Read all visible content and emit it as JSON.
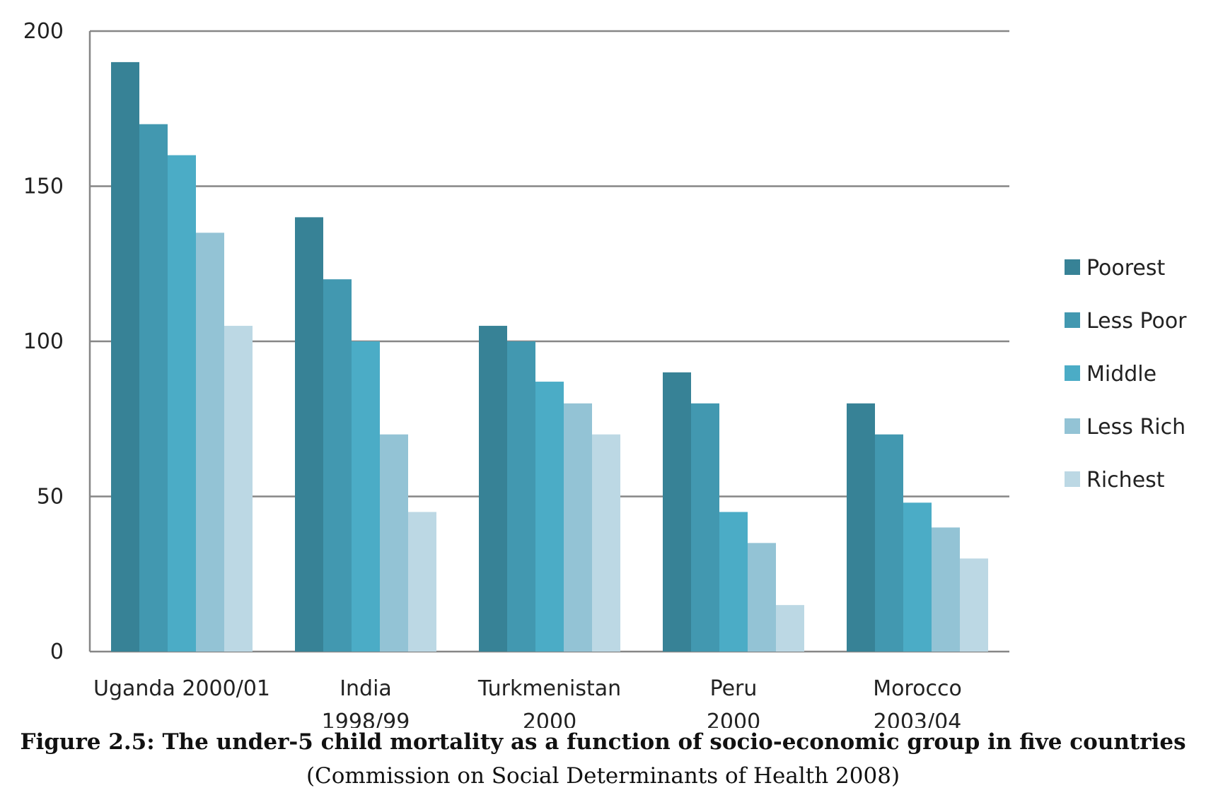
{
  "caption": {
    "title": "Figure 2.5: The under-5 child mortality as a function of socio-economic group in five countries",
    "source": "(Commission on Social Determinants of Health 2008)"
  },
  "chart_data": {
    "type": "bar",
    "categories": [
      [
        "Uganda 2000/01"
      ],
      [
        "India",
        "1998/99"
      ],
      [
        "Turkmenistan",
        "2000"
      ],
      [
        "Peru",
        "2000"
      ],
      [
        "Morocco",
        "2003/04"
      ]
    ],
    "series": [
      {
        "name": "Poorest",
        "color": "#378296",
        "values": [
          190,
          140,
          105,
          90,
          80
        ]
      },
      {
        "name": "Less Poor",
        "color": "#4298b0",
        "values": [
          170,
          120,
          100,
          80,
          70
        ]
      },
      {
        "name": "Middle",
        "color": "#4bacc6",
        "values": [
          160,
          100,
          87,
          45,
          48
        ]
      },
      {
        "name": "Less Rich",
        "color": "#93c3d5",
        "values": [
          135,
          70,
          80,
          35,
          40
        ]
      },
      {
        "name": "Richest",
        "color": "#bcd8e4",
        "values": [
          105,
          45,
          70,
          15,
          30
        ]
      }
    ],
    "ylim": [
      0,
      200
    ],
    "yticks": [
      "0",
      "50",
      "100",
      "150",
      "200"
    ],
    "grid": true,
    "legend": "right"
  }
}
